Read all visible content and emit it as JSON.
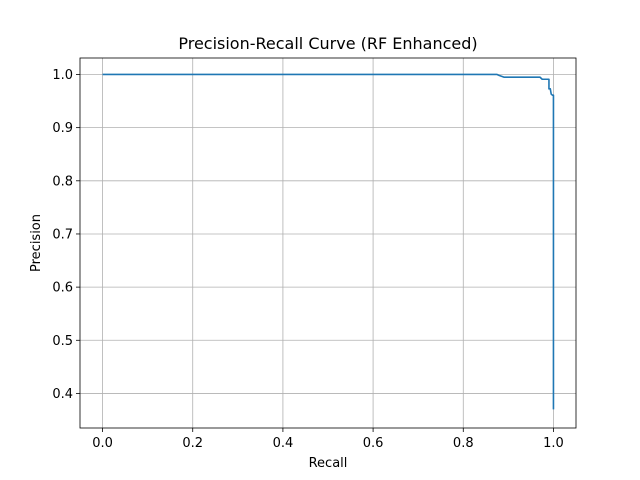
{
  "chart_data": {
    "type": "line",
    "title": "Precision-Recall Curve (RF Enhanced)",
    "xlabel": "Recall",
    "ylabel": "Precision",
    "xlim": [
      -0.05,
      1.05
    ],
    "ylim": [
      0.335,
      1.031
    ],
    "xticks": [
      0.0,
      0.2,
      0.4,
      0.6,
      0.8,
      1.0
    ],
    "xtick_labels": [
      "0.0",
      "0.2",
      "0.4",
      "0.6",
      "0.8",
      "1.0"
    ],
    "yticks": [
      0.4,
      0.5,
      0.6,
      0.7,
      0.8,
      0.9,
      1.0
    ],
    "ytick_labels": [
      "0.4",
      "0.5",
      "0.6",
      "0.7",
      "0.8",
      "0.9",
      "1.0"
    ],
    "grid": true,
    "series": [
      {
        "color": "#1f77b4",
        "x": [
          0.0,
          0.87,
          0.875,
          0.88,
          0.89,
          0.9,
          0.97,
          0.975,
          0.99,
          0.99,
          0.993,
          0.995,
          0.998,
          1.0,
          1.0
        ],
        "y": [
          1.0,
          1.0,
          1.0,
          0.998,
          0.995,
          0.995,
          0.995,
          0.991,
          0.991,
          0.973,
          0.973,
          0.963,
          0.961,
          0.961,
          0.37
        ]
      }
    ]
  }
}
